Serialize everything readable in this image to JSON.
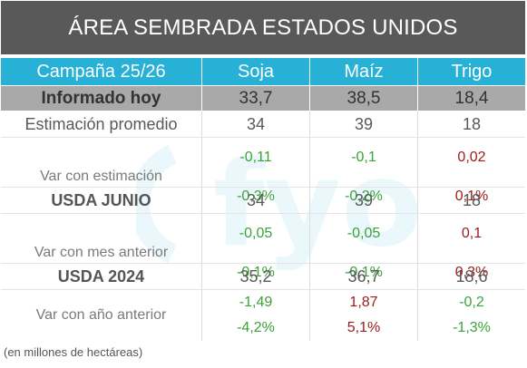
{
  "title": "ÁREA SEMBRADA ESTADOS UNIDOS",
  "header": {
    "campaign": "Campaña 25/26",
    "col1": "Soja",
    "col2": "Maíz",
    "col3": "Trigo"
  },
  "informado": {
    "label": "Informado hoy",
    "soja": "33,7",
    "maiz": "38,5",
    "trigo": "18,4"
  },
  "estimacion": {
    "label": "Estimación promedio",
    "soja": "34",
    "maiz": "39",
    "trigo": "18"
  },
  "var_estimacion": {
    "label": "Var con estimación",
    "abs": [
      "-0,11",
      "-0,1",
      "0,02"
    ],
    "pct": [
      "-0,3%",
      "-0,2%",
      "0,1%"
    ]
  },
  "usda_junio": {
    "label": "USDA JUNIO",
    "soja": "34",
    "maiz": "39",
    "trigo": "18"
  },
  "var_mes": {
    "label": "Var con mes anterior",
    "abs": [
      "-0,05",
      "-0,05",
      "0,1"
    ],
    "pct": [
      "-0,1%",
      "-0,1%",
      "0,3%"
    ]
  },
  "usda_2024": {
    "label": "USDA 2024",
    "soja": "35,2",
    "maiz": "36,7",
    "trigo": "18,6"
  },
  "var_anio": {
    "label": "Var con año anterior",
    "abs": [
      "-1,49",
      "1,87",
      "-0,2"
    ],
    "pct": [
      "-4,2%",
      "5,1%",
      "-1,3%"
    ]
  },
  "note": "(en millones de hectáreas)",
  "watermark": "fyo",
  "colors": {
    "header": "#27b1d6",
    "title_bg": "#595959",
    "informado_bg": "#a9a9a9",
    "positive_green": "#3aa23a",
    "negative_red": "#9b1b1b"
  }
}
